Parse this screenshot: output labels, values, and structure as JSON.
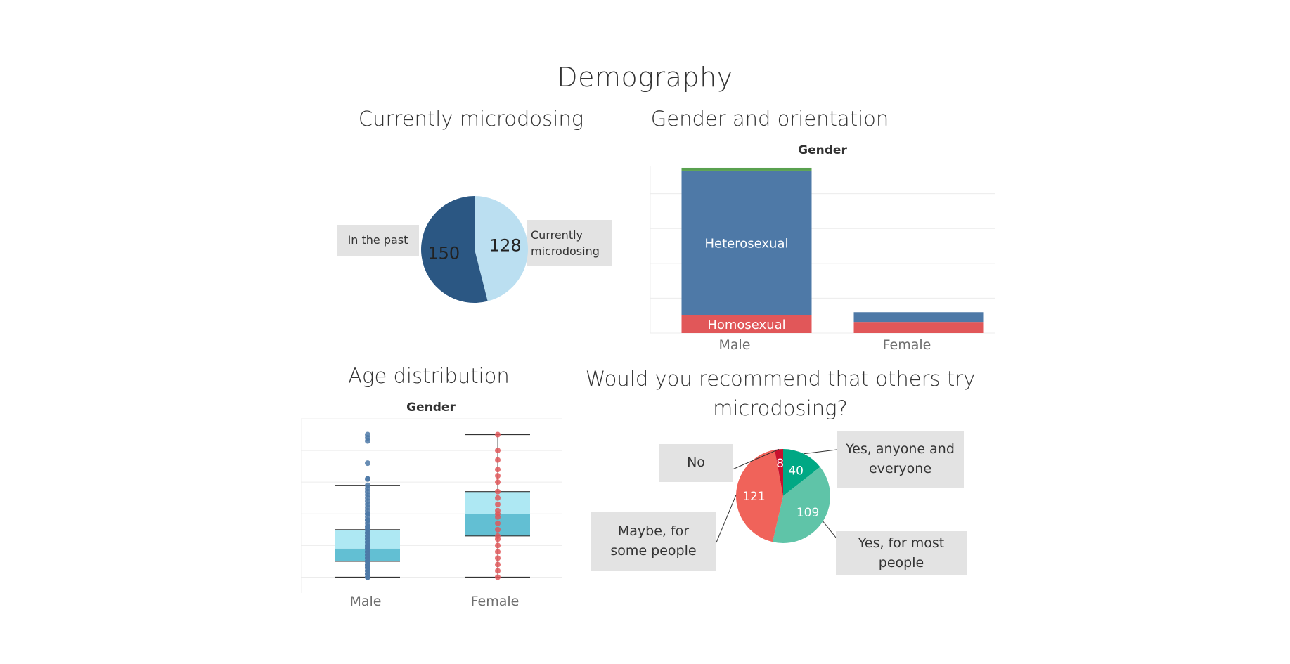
{
  "page": {
    "title": "Demography"
  },
  "colors": {
    "dark_blue": "#2b5783",
    "light_blue": "#bbdff1",
    "steel_blue": "#4e79a7",
    "red": "#e15759",
    "green": "#59a14f",
    "teal_dark": "#00a884",
    "teal_light": "#5fc4a8",
    "coral": "#f0635a",
    "crimson": "#c8102e",
    "box_light": "#aee8f3",
    "box_dark": "#62bfd3",
    "grid": "#ececec",
    "label_bg": "#e3e3e3"
  },
  "chart_data": [
    {
      "id": "current",
      "type": "pie",
      "title": "Currently microdosing",
      "slices": [
        {
          "label": "Currently microdosing",
          "value": 128,
          "color": "#bbdff1"
        },
        {
          "label": "In the past",
          "value": 150,
          "color": "#2b5783"
        }
      ]
    },
    {
      "id": "gender",
      "type": "bar",
      "title": "Gender and orientation",
      "header": "Gender",
      "categories": [
        "Male",
        "Female"
      ],
      "ylim": [
        0,
        240
      ],
      "grid": true,
      "series": [
        {
          "name": "Homosexual",
          "values": [
            26,
            16
          ],
          "color": "#e15759"
        },
        {
          "name": "Heterosexual",
          "values": [
            207,
            14
          ],
          "color": "#4e79a7"
        },
        {
          "name": "",
          "values": [
            4,
            0
          ],
          "color": "#59a14f"
        }
      ]
    },
    {
      "id": "age",
      "type": "box",
      "title": "Age distribution",
      "header": "Gender",
      "categories": [
        "Male",
        "Female"
      ],
      "ylim": [
        15,
        70
      ],
      "grid": true,
      "groups": [
        {
          "name": "Male",
          "whisker_low": 20,
          "q1": 25,
          "median": 29,
          "q3": 35,
          "whisker_high": 49,
          "points": [
            20,
            20,
            21,
            21,
            22,
            22,
            23,
            23,
            23,
            24,
            24,
            24,
            25,
            25,
            25,
            26,
            26,
            26,
            27,
            27,
            27,
            28,
            28,
            28,
            29,
            29,
            29,
            30,
            30,
            30,
            31,
            31,
            32,
            32,
            33,
            33,
            34,
            34,
            35,
            35,
            36,
            36,
            37,
            38,
            38,
            39,
            40,
            40,
            41,
            42,
            43,
            44,
            45,
            46,
            47,
            48,
            49,
            51,
            51,
            56,
            63,
            64,
            65
          ]
        },
        {
          "name": "Female",
          "whisker_low": 20,
          "q1": 33,
          "median": 40,
          "q3": 47,
          "whisker_high": 65,
          "points": [
            20,
            22,
            24,
            26,
            28,
            30,
            32,
            33,
            35,
            37,
            39,
            40,
            41,
            43,
            45,
            47,
            50,
            52,
            54,
            57,
            60,
            65
          ]
        }
      ]
    },
    {
      "id": "recommend",
      "type": "pie",
      "title": "Would you recommend that others try microdosing?",
      "slices": [
        {
          "label": "Yes, anyone and everyone",
          "value": 40,
          "color": "#00a884"
        },
        {
          "label": "Yes, for most people",
          "value": 109,
          "color": "#5fc4a8"
        },
        {
          "label": "Maybe, for some people",
          "value": 121,
          "color": "#f0635a"
        },
        {
          "label": "No",
          "value": 8,
          "color": "#c8102e"
        }
      ]
    }
  ]
}
